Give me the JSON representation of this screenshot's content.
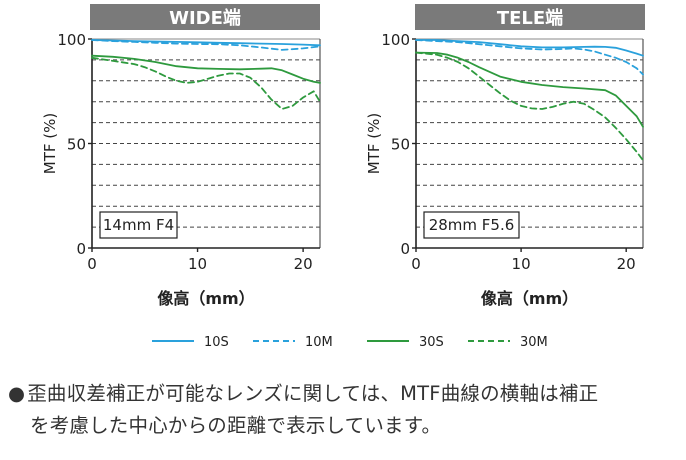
{
  "colors": {
    "s10": "#2aa1dc",
    "s30": "#2e9a3e",
    "header_bg": "#7a7a7a",
    "header_text": "#ffffff",
    "grid": "#444444",
    "axis": "#222222"
  },
  "chart_data": [
    {
      "type": "line",
      "title": "WIDE端",
      "lens_label": "14mm F4",
      "xlabel": "像高（mm）",
      "ylabel": "MTF (%)",
      "xlim": [
        0,
        21.6
      ],
      "ylim": [
        0,
        100
      ],
      "xticks": [
        0,
        10,
        20
      ],
      "yticks": [
        0,
        50,
        100
      ],
      "grid": "horizontal dashed every 10%",
      "series": [
        {
          "name": "10S",
          "style": "solid",
          "color": "#2aa1dc",
          "x": [
            0,
            2,
            4,
            6,
            8,
            10,
            12,
            14,
            16,
            18,
            20,
            21.6
          ],
          "y": [
            99.5,
            99.3,
            99,
            98.8,
            98.6,
            98.4,
            98.2,
            98,
            97.8,
            97.6,
            97.3,
            97
          ]
        },
        {
          "name": "10M",
          "style": "dashed",
          "color": "#2aa1dc",
          "x": [
            0,
            2,
            4,
            6,
            8,
            10,
            12,
            14,
            16,
            18,
            20,
            21.6
          ],
          "y": [
            99.5,
            99,
            98.6,
            98.2,
            97.8,
            97.6,
            97.5,
            97,
            96,
            94.8,
            95.5,
            96.5
          ]
        },
        {
          "name": "30S",
          "style": "solid",
          "color": "#2e9a3e",
          "x": [
            0,
            2,
            4,
            6,
            8,
            10,
            12,
            14,
            16,
            17,
            18,
            19,
            20,
            21,
            21.6
          ],
          "y": [
            92,
            91.5,
            90.5,
            89,
            87,
            86,
            85.7,
            85.5,
            85.8,
            86,
            85,
            83,
            81,
            79.5,
            79
          ]
        },
        {
          "name": "30M",
          "style": "dashed",
          "color": "#2e9a3e",
          "x": [
            0,
            2,
            4,
            5,
            6,
            7,
            8,
            9,
            10,
            11,
            12,
            13,
            14,
            15,
            16,
            17,
            18,
            19,
            20,
            21,
            21.6
          ],
          "y": [
            91,
            89.5,
            88,
            86.5,
            84.5,
            82,
            80,
            79,
            79.5,
            81,
            82.5,
            83.5,
            83.5,
            81.5,
            77,
            71,
            66.5,
            68,
            72,
            75,
            70
          ]
        }
      ]
    },
    {
      "type": "line",
      "title": "TELE端",
      "lens_label": "28mm F5.6",
      "xlabel": "像高（mm）",
      "ylabel": "MTF (%)",
      "xlim": [
        0,
        21.6
      ],
      "ylim": [
        0,
        100
      ],
      "xticks": [
        0,
        10,
        20
      ],
      "yticks": [
        0,
        50,
        100
      ],
      "grid": "horizontal dashed every 10%",
      "series": [
        {
          "name": "10S",
          "style": "solid",
          "color": "#2aa1dc",
          "x": [
            0,
            2,
            4,
            6,
            8,
            10,
            12,
            14,
            16,
            17,
            18,
            19,
            20,
            21,
            21.6
          ],
          "y": [
            99.5,
            99.5,
            99,
            98.5,
            97.5,
            96.5,
            96,
            96,
            96.2,
            96.3,
            96.2,
            95.8,
            94.5,
            93,
            92
          ]
        },
        {
          "name": "10M",
          "style": "dashed",
          "color": "#2aa1dc",
          "x": [
            0,
            2,
            4,
            6,
            8,
            10,
            12,
            14,
            15,
            16,
            17,
            18,
            19,
            20,
            21,
            21.6
          ],
          "y": [
            99.5,
            99,
            98.5,
            97.5,
            96.5,
            95.5,
            95,
            95.2,
            95.5,
            95,
            94,
            92.5,
            91,
            89,
            86,
            83
          ]
        },
        {
          "name": "30S",
          "style": "solid",
          "color": "#2e9a3e",
          "x": [
            0,
            2,
            3,
            4,
            5,
            6,
            8,
            10,
            12,
            14,
            16,
            18,
            19,
            20,
            21,
            21.6
          ],
          "y": [
            93.5,
            93.3,
            92.5,
            91,
            89,
            86.5,
            82,
            79.5,
            78,
            77,
            76.3,
            75.5,
            73,
            68,
            63,
            58
          ]
        },
        {
          "name": "30M",
          "style": "dashed",
          "color": "#2e9a3e",
          "x": [
            0,
            2,
            3,
            4,
            5,
            6,
            7,
            8,
            9,
            10,
            11,
            12,
            13,
            14,
            15,
            16,
            17,
            18,
            19,
            20,
            21,
            21.6
          ],
          "y": [
            93.5,
            92.5,
            91,
            89,
            86,
            82,
            78,
            74,
            70.5,
            68,
            66.8,
            66.5,
            67.5,
            69,
            70,
            69,
            66,
            62.5,
            57.5,
            52,
            46,
            42
          ]
        }
      ]
    }
  ],
  "legend": {
    "items": [
      {
        "label": "10S",
        "color": "#2aa1dc",
        "style": "solid"
      },
      {
        "label": "10M",
        "color": "#2aa1dc",
        "style": "dashed"
      },
      {
        "label": "30S",
        "color": "#2e9a3e",
        "style": "solid"
      },
      {
        "label": "30M",
        "color": "#2e9a3e",
        "style": "dashed"
      }
    ]
  },
  "note": {
    "bullet": "●",
    "line1": "歪曲収差補正が可能なレンズに関しては、MTF曲線の横軸は補正",
    "line2": "を考慮した中心からの距離で表示しています。"
  }
}
